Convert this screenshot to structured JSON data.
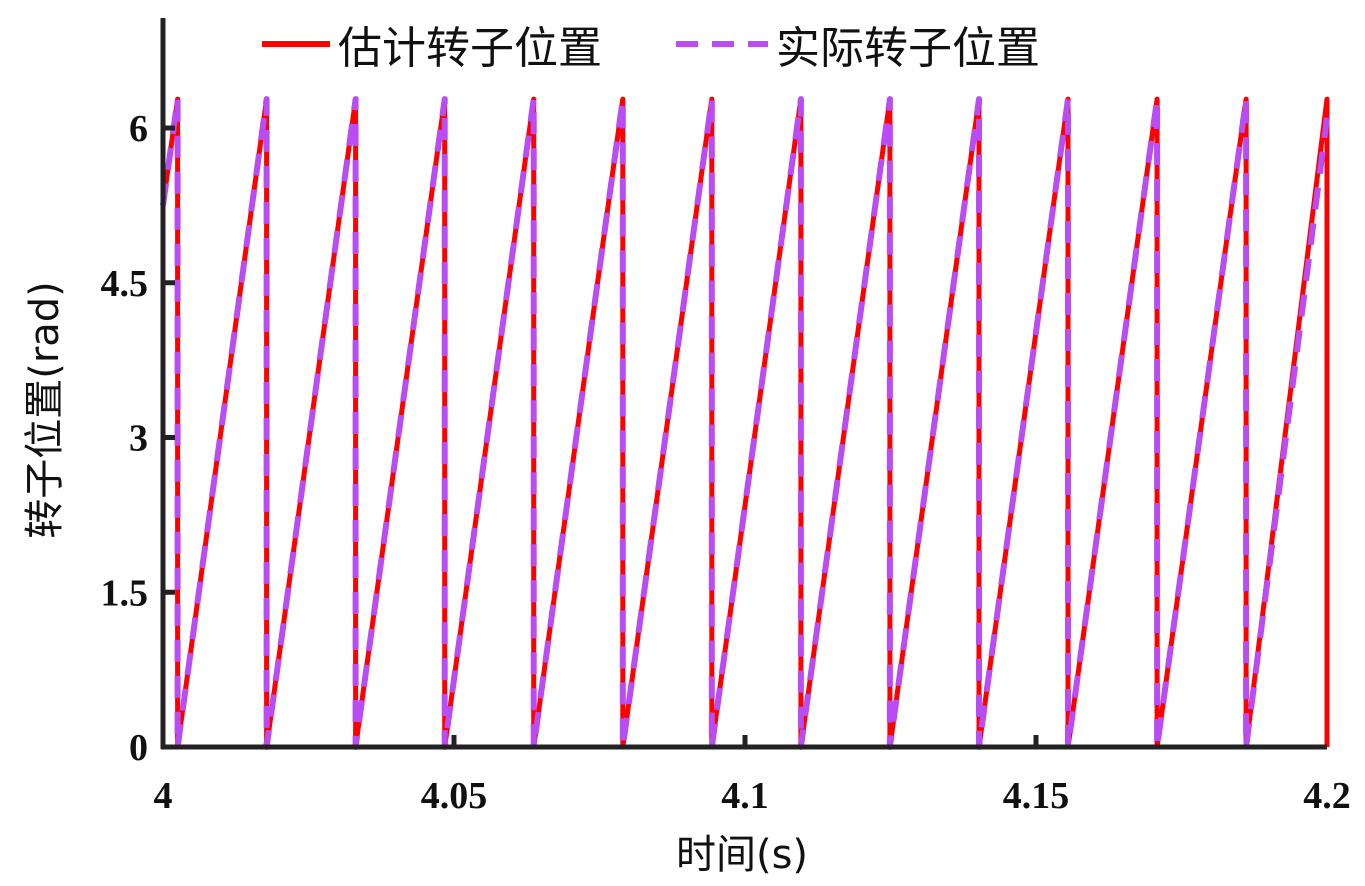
{
  "chart_data": {
    "type": "line",
    "title": "",
    "xlabel": "时间(s)",
    "ylabel": "转子位置(rad)",
    "xlim": [
      4,
      4.2
    ],
    "ylim": [
      0,
      7
    ],
    "xticks": [
      4,
      4.05,
      4.1,
      4.15,
      4.2
    ],
    "xtick_labels": [
      "4",
      "4.05",
      "4.1",
      "4.15",
      "4.2"
    ],
    "yticks": [
      0,
      1.5,
      3,
      4.5,
      6
    ],
    "ytick_labels": [
      "0",
      "1.5",
      "3",
      "4.5",
      "6"
    ],
    "grid": false,
    "legend_position": "top",
    "series": [
      {
        "name": "估计转子位置",
        "color": "#ff0000",
        "style": "solid",
        "x": [
          4.0,
          4.0025,
          4.0025,
          4.0178,
          4.0178,
          4.0331,
          4.0331,
          4.0484,
          4.0484,
          4.0637,
          4.0637,
          4.079,
          4.079,
          4.0943,
          4.0943,
          4.1096,
          4.1096,
          4.1249,
          4.1249,
          4.1402,
          4.1402,
          4.1555,
          4.1555,
          4.1708,
          4.1708,
          4.1861,
          4.1861,
          4.2,
          4.2
        ],
        "y": [
          5.25,
          6.28,
          0,
          6.28,
          0,
          6.28,
          0,
          6.28,
          0,
          6.28,
          0,
          6.28,
          0,
          6.28,
          0,
          6.28,
          0,
          6.28,
          0,
          6.28,
          0,
          6.28,
          0,
          6.28,
          0,
          6.28,
          0,
          6.28,
          0
        ]
      },
      {
        "name": "实际转子位置",
        "color": "#b94cf2",
        "style": "dashed",
        "x": [
          4.0,
          4.0025,
          4.0025,
          4.0178,
          4.0178,
          4.0331,
          4.0331,
          4.0484,
          4.0484,
          4.0637,
          4.0637,
          4.079,
          4.079,
          4.0943,
          4.0943,
          4.1096,
          4.1096,
          4.1249,
          4.1249,
          4.1402,
          4.1402,
          4.1555,
          4.1555,
          4.1708,
          4.1708,
          4.1861,
          4.1861,
          4.2
        ],
        "y": [
          5.25,
          6.28,
          0,
          6.28,
          0,
          6.28,
          0,
          6.28,
          0,
          6.28,
          0,
          6.28,
          0,
          6.28,
          0,
          6.28,
          0,
          6.28,
          0,
          6.28,
          0,
          6.28,
          0,
          6.28,
          0,
          6.28,
          0,
          6.1
        ]
      }
    ]
  }
}
